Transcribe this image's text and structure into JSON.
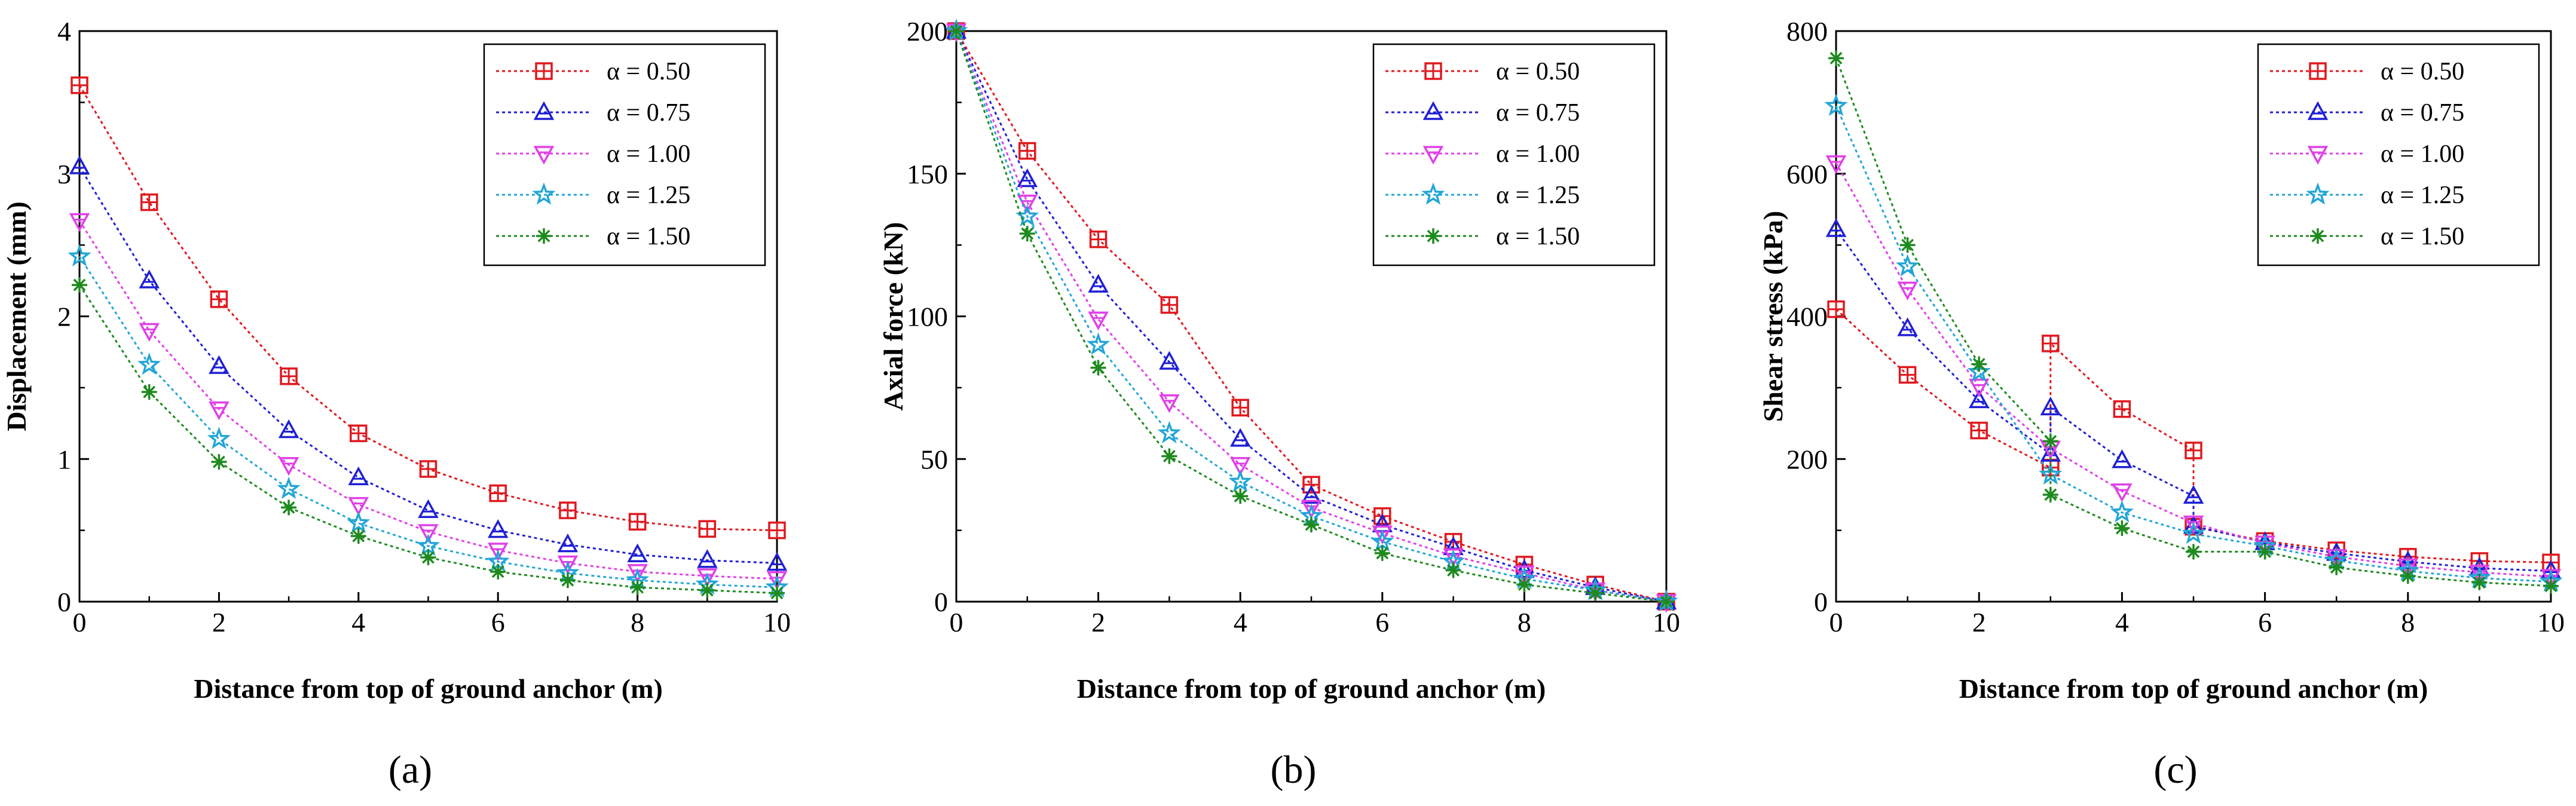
{
  "chart_data": [
    {
      "type": "line",
      "panel_label": "(a)",
      "xlabel": "Distance from top of ground anchor (m)",
      "ylabel": "Displacement (mm)",
      "xlim": [
        0,
        10
      ],
      "ylim": [
        0,
        4
      ],
      "xticks": [
        0,
        2,
        4,
        6,
        8,
        10
      ],
      "yticks": [
        0,
        1,
        2,
        3,
        4
      ],
      "legend_position": "top-right",
      "x": [
        0,
        1,
        2,
        3,
        4,
        5,
        6,
        7,
        8,
        9,
        10
      ],
      "series": [
        {
          "name": "α = 0.50",
          "color": "#e0191f",
          "marker": "square",
          "values": [
            3.62,
            2.8,
            2.12,
            1.58,
            1.18,
            0.93,
            0.76,
            0.64,
            0.56,
            0.51,
            0.5
          ]
        },
        {
          "name": "α = 0.75",
          "color": "#1f1fd6",
          "marker": "triangle-up",
          "values": [
            3.05,
            2.25,
            1.65,
            1.2,
            0.87,
            0.64,
            0.5,
            0.4,
            0.33,
            0.29,
            0.27
          ]
        },
        {
          "name": "α = 1.00",
          "color": "#e040e8",
          "marker": "triangle-down",
          "values": [
            2.67,
            1.9,
            1.35,
            0.96,
            0.68,
            0.49,
            0.36,
            0.27,
            0.21,
            0.18,
            0.16
          ]
        },
        {
          "name": "α = 1.25",
          "color": "#22a6d6",
          "marker": "star",
          "values": [
            2.42,
            1.66,
            1.14,
            0.79,
            0.55,
            0.39,
            0.28,
            0.2,
            0.15,
            0.12,
            0.1
          ]
        },
        {
          "name": "α = 1.50",
          "color": "#1e8a1e",
          "marker": "asterisk",
          "values": [
            2.22,
            1.47,
            0.98,
            0.66,
            0.46,
            0.31,
            0.21,
            0.15,
            0.1,
            0.08,
            0.06
          ]
        }
      ]
    },
    {
      "type": "line",
      "panel_label": "(b)",
      "xlabel": "Distance from top of ground anchor (m)",
      "ylabel": "Axial force (kN)",
      "xlim": [
        0,
        10
      ],
      "ylim": [
        0,
        200
      ],
      "xticks": [
        0,
        2,
        4,
        6,
        8,
        10
      ],
      "yticks": [
        0,
        50,
        100,
        150,
        200
      ],
      "legend_position": "top-right",
      "x": [
        0,
        1,
        2,
        3,
        4,
        5,
        6,
        7,
        8,
        9,
        10
      ],
      "series": [
        {
          "name": "α = 0.50",
          "color": "#e0191f",
          "marker": "square",
          "values": [
            200,
            158,
            127,
            104,
            68,
            41,
            30,
            21,
            13,
            6,
            0
          ]
        },
        {
          "name": "α = 0.75",
          "color": "#1f1fd6",
          "marker": "triangle-up",
          "values": [
            200,
            148,
            111,
            84,
            57,
            37,
            27,
            19,
            11,
            5,
            0
          ]
        },
        {
          "name": "α = 1.00",
          "color": "#e040e8",
          "marker": "triangle-down",
          "values": [
            200,
            140,
            99,
            70,
            48,
            33,
            24,
            16,
            10,
            4,
            0
          ]
        },
        {
          "name": "α = 1.25",
          "color": "#22a6d6",
          "marker": "star",
          "values": [
            200,
            135,
            90,
            59,
            42,
            30,
            21,
            14,
            8,
            4,
            0
          ]
        },
        {
          "name": "α = 1.50",
          "color": "#1e8a1e",
          "marker": "asterisk",
          "values": [
            200,
            129,
            82,
            51,
            37,
            27,
            17,
            11,
            6,
            3,
            0
          ]
        }
      ]
    },
    {
      "type": "line",
      "panel_label": "(c)",
      "xlabel": "Distance from top of ground anchor (m)",
      "ylabel": "Shear stress (kPa)",
      "xlim": [
        0,
        10
      ],
      "ylim": [
        0,
        800
      ],
      "xticks": [
        0,
        2,
        4,
        6,
        8,
        10
      ],
      "yticks": [
        0,
        200,
        400,
        600,
        800
      ],
      "legend_position": "top-right",
      "series": [
        {
          "name": "α = 0.50",
          "color": "#e0191f",
          "marker": "square",
          "x": [
            0,
            1,
            2,
            3,
            3,
            4,
            5,
            5,
            6,
            7,
            8,
            9,
            10
          ],
          "values": [
            410,
            318,
            240,
            188,
            362,
            270,
            212,
            105,
            85,
            72,
            63,
            57,
            55
          ]
        },
        {
          "name": "α = 0.75",
          "color": "#1f1fd6",
          "marker": "triangle-up",
          "x": [
            0,
            1,
            2,
            3,
            3,
            4,
            5,
            5,
            6,
            7,
            8,
            9,
            10
          ],
          "values": [
            522,
            383,
            282,
            207,
            272,
            198,
            148,
            106,
            83,
            68,
            56,
            47,
            43
          ]
        },
        {
          "name": "α = 1.00",
          "color": "#e040e8",
          "marker": "triangle-down",
          "x": [
            0,
            1,
            2,
            3,
            4,
            5,
            6,
            7,
            8,
            9,
            10
          ],
          "values": [
            615,
            438,
            302,
            215,
            155,
            110,
            82,
            63,
            50,
            41,
            35
          ]
        },
        {
          "name": "α = 1.25",
          "color": "#22a6d6",
          "marker": "star",
          "x": [
            0,
            1,
            2,
            3,
            4,
            5,
            6,
            7,
            8,
            9,
            10
          ],
          "values": [
            695,
            470,
            322,
            178,
            125,
            95,
            78,
            58,
            43,
            33,
            28
          ]
        },
        {
          "name": "α = 1.50",
          "color": "#1e8a1e",
          "marker": "asterisk",
          "x": [
            0,
            1,
            2,
            3,
            3,
            4,
            5,
            6,
            7,
            8,
            9,
            10
          ],
          "values": [
            762,
            500,
            333,
            225,
            150,
            103,
            70,
            70,
            48,
            36,
            27,
            22
          ]
        }
      ]
    }
  ]
}
